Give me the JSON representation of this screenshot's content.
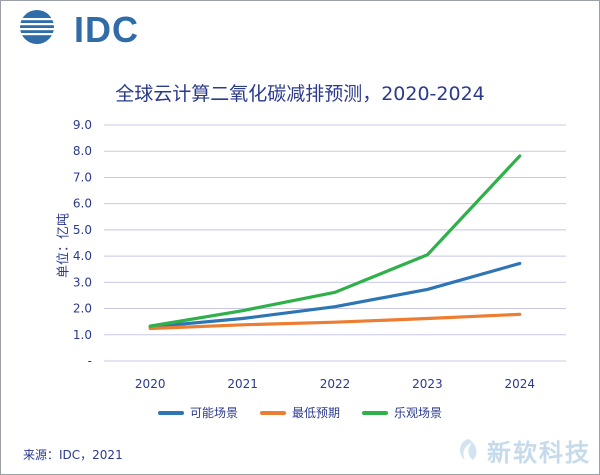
{
  "logo": {
    "text": "IDC"
  },
  "chart_data": {
    "type": "line",
    "title": "全球云计算二氧化碳减排预测，2020-2024",
    "ylabel": "单位：亿吨",
    "xlabel": "",
    "categories": [
      "2020",
      "2021",
      "2022",
      "2023",
      "2024"
    ],
    "ylim": [
      0,
      9.0
    ],
    "y_ticks": [
      "-",
      "1.0",
      "2.0",
      "3.0",
      "4.0",
      "5.0",
      "6.0",
      "7.0",
      "8.0",
      "9.0"
    ],
    "grid": true,
    "legend_position": "bottom",
    "series": [
      {
        "name": "可能场景",
        "color": "#2e75b6",
        "values": [
          1.3,
          1.62,
          2.07,
          2.73,
          3.72
        ]
      },
      {
        "name": "最低预期",
        "color": "#ed7d31",
        "values": [
          1.24,
          1.38,
          1.48,
          1.62,
          1.78
        ]
      },
      {
        "name": "乐观场景",
        "color": "#2fb04a",
        "values": [
          1.33,
          1.92,
          2.62,
          4.05,
          7.82
        ]
      }
    ]
  },
  "source": "来源：IDC，2021",
  "watermark": {
    "text": "新软科技"
  }
}
